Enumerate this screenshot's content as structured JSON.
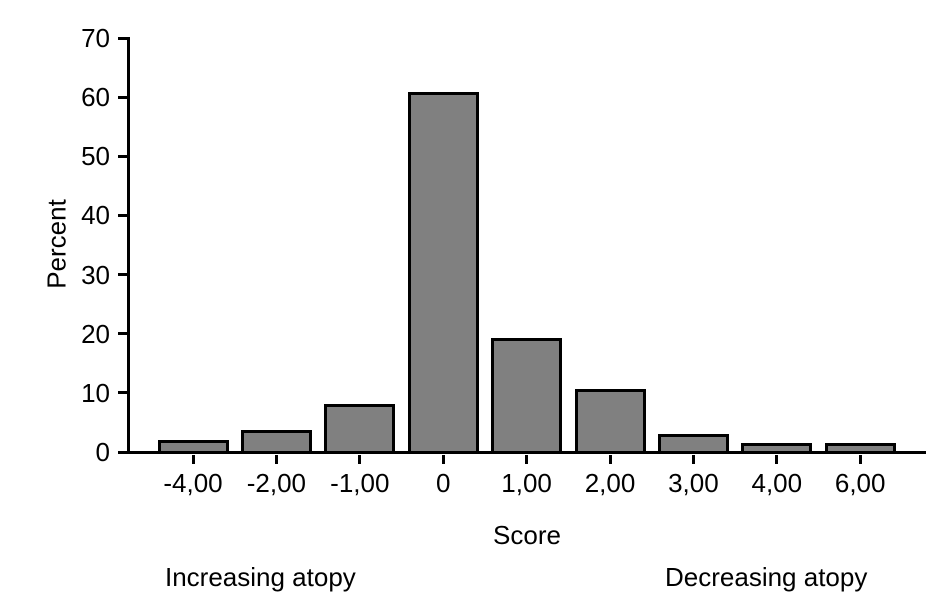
{
  "figure": {
    "background": "#ffffff",
    "bar_fill": "#808080",
    "bar_border": "#000000",
    "axis_color": "#000000",
    "text_color": "#000000"
  },
  "chart_data": {
    "type": "bar",
    "title": "",
    "categories": [
      "-4,00",
      "-2,00",
      "-1,00",
      "0",
      "1,00",
      "2,00",
      "3,00",
      "4,00",
      "6,00"
    ],
    "values": [
      2.0,
      3.7,
      8.2,
      60.8,
      19.2,
      10.7,
      3.0,
      1.5,
      1.5
    ],
    "xlabel": "Score",
    "ylabel": "Percent",
    "ylim": [
      0,
      70
    ],
    "yticks": [
      0,
      10,
      20,
      30,
      40,
      50,
      60,
      70
    ],
    "grid": false,
    "legend": null,
    "annotations": [
      {
        "text": "Increasing atopy",
        "position": "bottom-left"
      },
      {
        "text": "Decreasing atopy",
        "position": "bottom-right"
      }
    ]
  }
}
